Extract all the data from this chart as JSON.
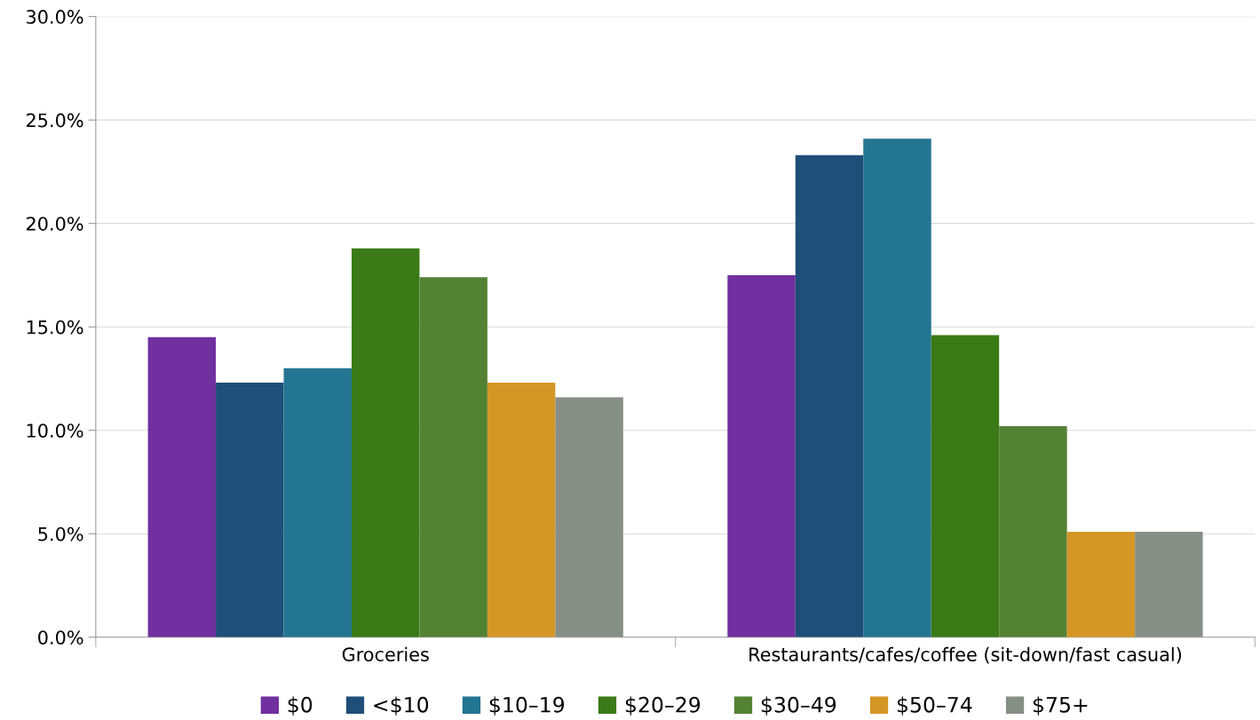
{
  "chart_data": {
    "type": "bar",
    "categories": [
      "Groceries",
      "Restaurants/cafes/coffee (sit-down/fast casual)"
    ],
    "series": [
      {
        "name": "$0",
        "color": "#7030a0",
        "values": [
          14.5,
          17.5
        ]
      },
      {
        "name": "<$10",
        "color": "#1f4e79",
        "values": [
          12.3,
          23.3
        ]
      },
      {
        "name": "$10–19",
        "color": "#237592",
        "values": [
          13.0,
          24.1
        ]
      },
      {
        "name": "$20–29",
        "color": "#3a7a17",
        "values": [
          18.8,
          14.6
        ]
      },
      {
        "name": "$30–49",
        "color": "#548235",
        "values": [
          17.4,
          10.2
        ]
      },
      {
        "name": "$50–74",
        "color": "#d49726",
        "values": [
          12.3,
          5.1
        ]
      },
      {
        "name": "$75+",
        "color": "#868f86",
        "values": [
          11.6,
          5.1
        ]
      }
    ],
    "ylim": [
      0,
      30
    ],
    "yticks": [
      {
        "value": 0,
        "label": "0.0%"
      },
      {
        "value": 5,
        "label": "5.0%"
      },
      {
        "value": 10,
        "label": "10.0%"
      },
      {
        "value": 15,
        "label": "15.0%"
      },
      {
        "value": 20,
        "label": "20.0%"
      },
      {
        "value": 25,
        "label": "25.0%"
      },
      {
        "value": 30,
        "label": "30.0%"
      }
    ],
    "grid": "y",
    "legend": "bottom"
  }
}
